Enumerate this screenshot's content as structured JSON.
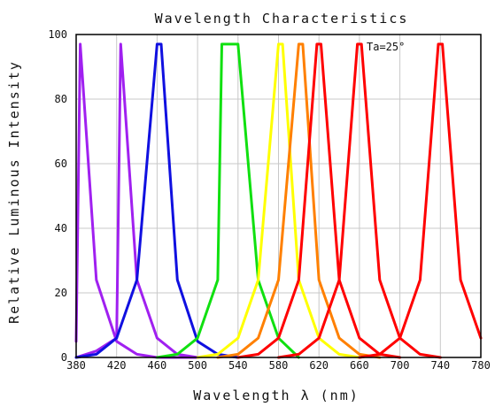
{
  "chart_data": {
    "type": "line",
    "title": "Wavelength Characteristics",
    "xlabel": "Wavelength λ (nm)",
    "ylabel": "Relative Luminous Intensity",
    "annotation": "Ta=25°",
    "xlim": [
      380,
      780
    ],
    "ylim": [
      0,
      100
    ],
    "x_ticks": [
      380,
      420,
      460,
      500,
      540,
      580,
      620,
      660,
      700,
      740,
      780
    ],
    "y_ticks": [
      0,
      20,
      40,
      60,
      80,
      100
    ],
    "grid": true,
    "legend": "none",
    "series": [
      {
        "color": "#a020f0",
        "x": [
          380,
          384,
          400,
          420,
          440,
          460,
          480,
          500
        ],
        "y": [
          5,
          97,
          24,
          5,
          1,
          0,
          0,
          0
        ]
      },
      {
        "color": "#a020f0",
        "x": [
          380,
          400,
          420,
          424,
          440,
          460,
          480,
          500
        ],
        "y": [
          0,
          2,
          6,
          97,
          24,
          6,
          1,
          0
        ]
      },
      {
        "color": "#1010e0",
        "x": [
          380,
          400,
          420,
          440,
          460,
          464,
          480,
          500,
          520,
          540
        ],
        "y": [
          0,
          1,
          6,
          24,
          97,
          97,
          24,
          5,
          1,
          0
        ]
      },
      {
        "color": "#10e010",
        "x": [
          460,
          480,
          500,
          520,
          524,
          540,
          560,
          580,
          600
        ],
        "y": [
          0,
          1,
          6,
          24,
          97,
          97,
          24,
          6,
          0
        ]
      },
      {
        "color": "#ffff00",
        "x": [
          500,
          520,
          540,
          560,
          580,
          584,
          600,
          620,
          640,
          660
        ],
        "y": [
          0,
          1,
          6,
          24,
          97,
          97,
          24,
          6,
          1,
          0
        ]
      },
      {
        "color": "#ff8000",
        "x": [
          520,
          540,
          560,
          580,
          600,
          604,
          620,
          640,
          660,
          680
        ],
        "y": [
          0,
          1,
          6,
          24,
          97,
          97,
          24,
          6,
          1,
          0
        ]
      },
      {
        "color": "#ff0000",
        "x": [
          540,
          560,
          580,
          600,
          618,
          622,
          640,
          660,
          680,
          700
        ],
        "y": [
          0,
          1,
          6,
          24,
          97,
          97,
          24,
          6,
          1,
          0
        ]
      },
      {
        "color": "#ff0000",
        "x": [
          580,
          600,
          620,
          640,
          658,
          662,
          680,
          700,
          720,
          740
        ],
        "y": [
          0,
          1,
          6,
          24,
          97,
          97,
          24,
          6,
          1,
          0
        ]
      },
      {
        "color": "#ff0000",
        "x": [
          660,
          680,
          700,
          720,
          738,
          742,
          760,
          780
        ],
        "y": [
          0,
          1,
          6,
          24,
          97,
          97,
          24,
          6
        ]
      }
    ]
  }
}
